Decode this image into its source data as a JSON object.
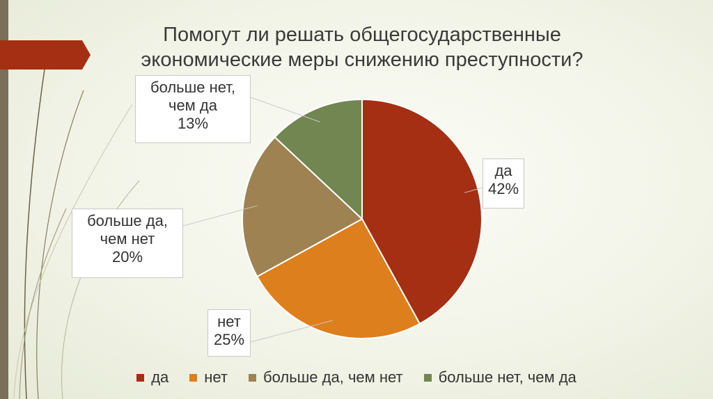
{
  "title": {
    "line1": "Помогут ли решать общегосударственные",
    "line2": "экономические меры снижению преступности?"
  },
  "chart_data": {
    "type": "pie",
    "title": "Помогут ли решать общегосударственные экономические меры снижению преступности?",
    "categories": [
      "да",
      "нет",
      "больше да, чем нет",
      "больше нет, чем да"
    ],
    "values": [
      42,
      25,
      20,
      13
    ],
    "unit": "%",
    "colors": [
      "#a52f12",
      "#dd7f1c",
      "#9e8252",
      "#718650"
    ],
    "legend_position": "bottom",
    "labels": [
      {
        "lines": [
          "да",
          "42%"
        ]
      },
      {
        "lines": [
          "нет",
          "25%"
        ]
      },
      {
        "lines": [
          "больше да,",
          "чем нет",
          "20%"
        ]
      },
      {
        "lines": [
          "больше нет,",
          "чем да",
          "13%"
        ]
      }
    ]
  }
}
